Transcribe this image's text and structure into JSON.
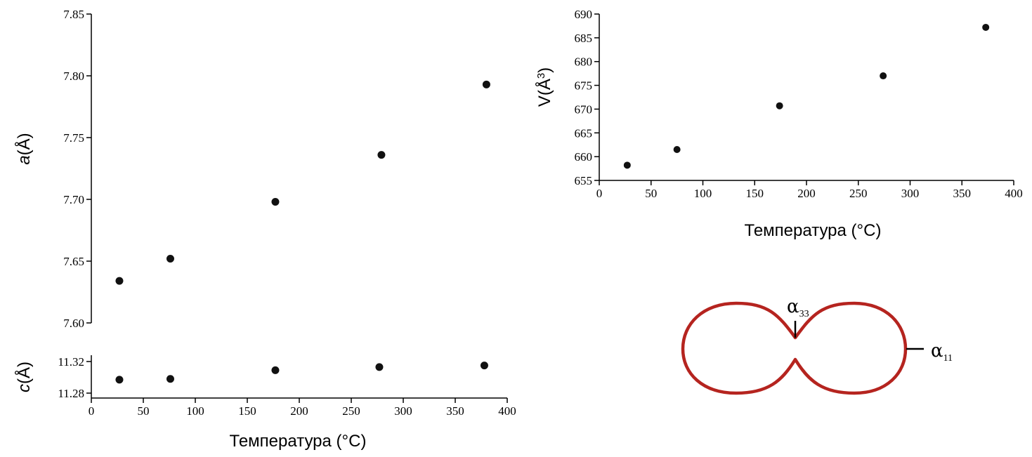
{
  "chart_data": [
    {
      "type": "scatter",
      "ylabel": "a(Å)",
      "ylim": [
        7.6,
        7.85
      ],
      "yticks": [
        "7.60",
        "7.65",
        "7.70",
        "7.75",
        "7.80",
        "7.85"
      ],
      "series": [
        {
          "x": [
            27,
            76,
            177,
            279,
            380
          ],
          "y": [
            7.634,
            7.652,
            7.698,
            7.736,
            7.793
          ]
        }
      ]
    },
    {
      "type": "scatter",
      "xlabel": "Температура (°C)",
      "ylabel": "c(Å)",
      "xlim": [
        0,
        400
      ],
      "ylim": [
        11.28,
        11.32
      ],
      "xticks": [
        "0",
        "50",
        "100",
        "150",
        "200",
        "250",
        "300",
        "350",
        "400"
      ],
      "yticks": [
        "11.28",
        "11.32"
      ],
      "series": [
        {
          "x": [
            27,
            76,
            177,
            277,
            378
          ],
          "y": [
            11.297,
            11.298,
            11.309,
            11.313,
            11.315
          ]
        }
      ]
    },
    {
      "type": "scatter",
      "xlabel": "Температура (°C)",
      "ylabel": "V(Å³)",
      "xlim": [
        0,
        400
      ],
      "ylim": [
        655,
        690
      ],
      "xticks": [
        "0",
        "50",
        "100",
        "150",
        "200",
        "250",
        "300",
        "350",
        "400"
      ],
      "yticks": [
        "655",
        "660",
        "665",
        "670",
        "675",
        "680",
        "685",
        "690"
      ],
      "series": [
        {
          "x": [
            27,
            75,
            174,
            274,
            373
          ],
          "y": [
            658.2,
            661.5,
            670.7,
            677.0,
            687.2
          ]
        }
      ]
    }
  ],
  "diagram": {
    "alpha33": {
      "base": "α",
      "sub": "33"
    },
    "alpha11": {
      "base": "α",
      "sub": "11"
    },
    "stroke_color": "#b5241f"
  }
}
